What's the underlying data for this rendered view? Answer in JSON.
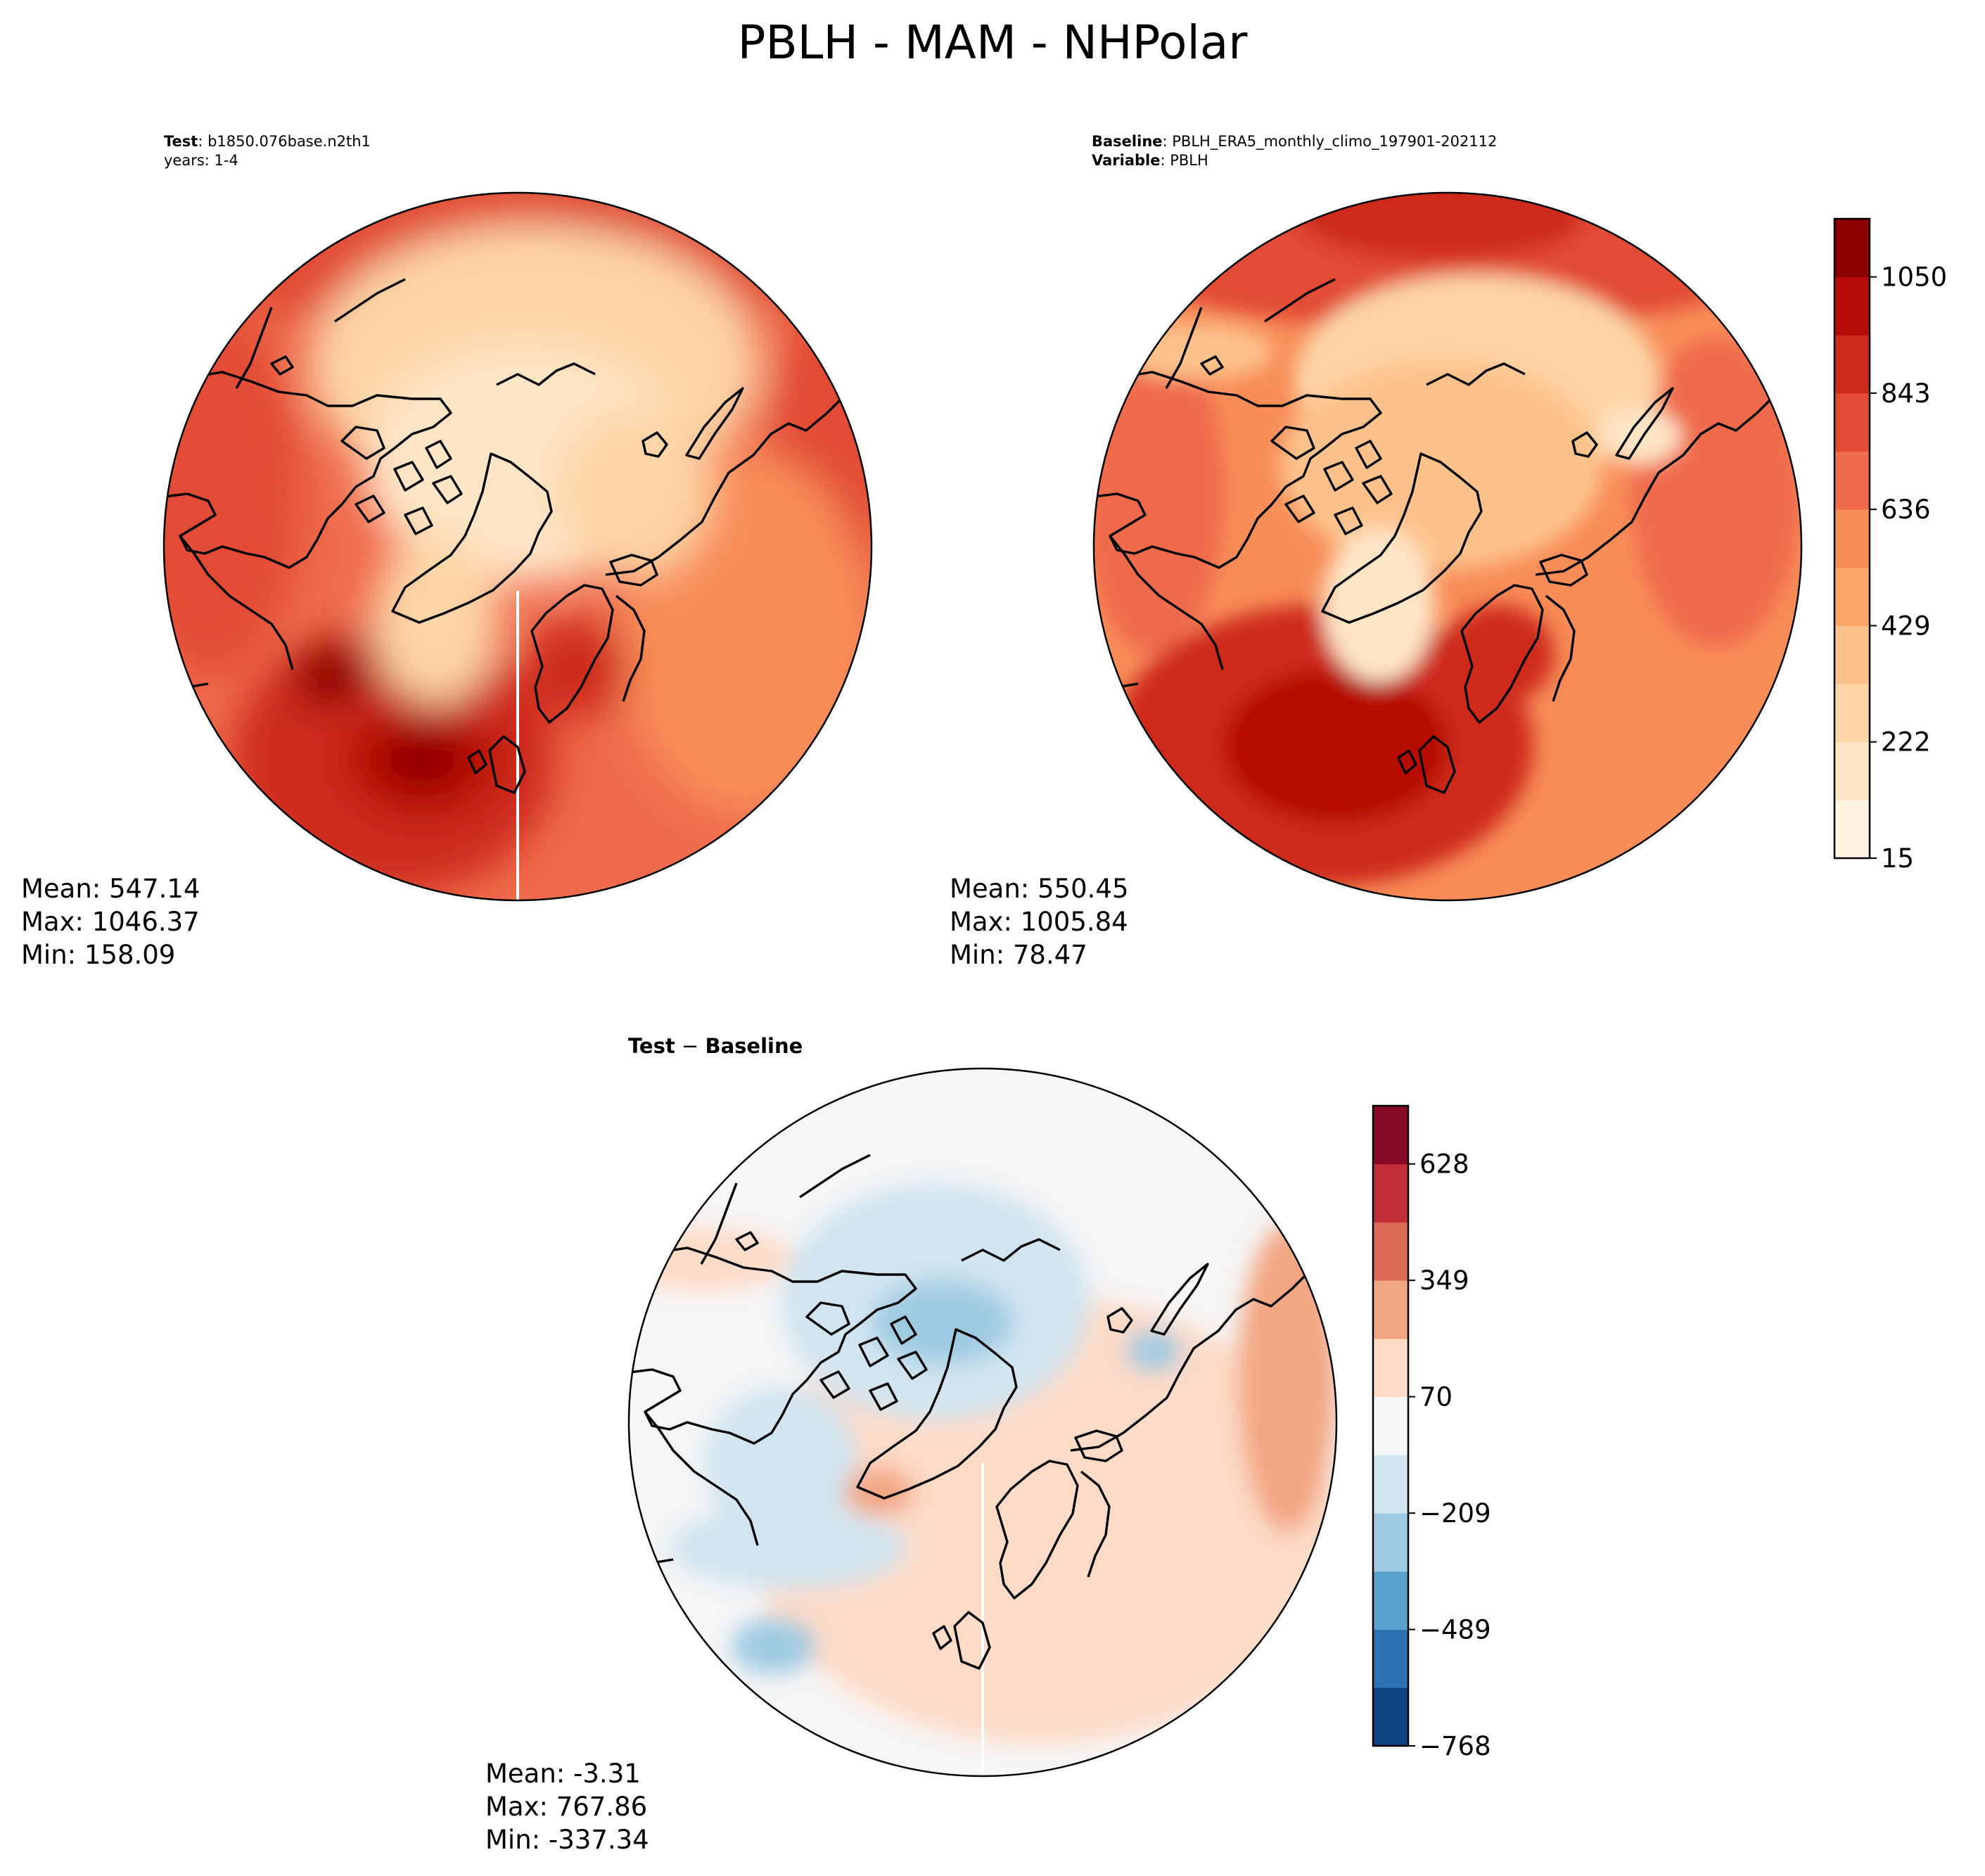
{
  "title": "PBLH - MAM - NHPolar",
  "panels": {
    "test": {
      "label_bold": "Test",
      "label_text": ": b1850.076base.n2th1",
      "line2": "years: 1-4",
      "mean": "Mean: 547.14",
      "max": "Max: 1046.37",
      "min": "Min: 158.09"
    },
    "baseline": {
      "label_bold": "Baseline",
      "label_text": ": PBLH_ERA5_monthly_climo_197901-202112",
      "line2_bold": "Variable",
      "line2_text": ": PBLH",
      "mean": "Mean: 550.45",
      "max": "Max: 1005.84",
      "min": "Min: 78.47"
    },
    "diff": {
      "label_bold": "Test",
      "label_mid": " − ",
      "label_bold2": "Baseline",
      "mean": "Mean: -3.31",
      "max": "Max: 767.86",
      "min": "Min: -337.34"
    }
  },
  "colorbars": {
    "main": {
      "colormap": "OrRd",
      "colors": [
        "#fff3e3",
        "#fee5c6",
        "#fdd5a6",
        "#fdc28b",
        "#fca767",
        "#f88d58",
        "#ef6b4c",
        "#e24b35",
        "#ce2a1e",
        "#b60a06",
        "#8e0000"
      ],
      "ticks": [
        "15",
        "222",
        "429",
        "636",
        "843",
        "1050"
      ]
    },
    "diff": {
      "colormap": "RdBu_r",
      "colors": [
        "#0d4482",
        "#2a72b2",
        "#5aa1cd",
        "#9ecae1",
        "#d1e5f0",
        "#f6f6f6",
        "#fddbc7",
        "#f3a682",
        "#db6b55",
        "#c03036",
        "#860a25"
      ],
      "ticks": [
        "−768",
        "−489",
        "−209",
        "70",
        "349",
        "628"
      ]
    }
  }
}
